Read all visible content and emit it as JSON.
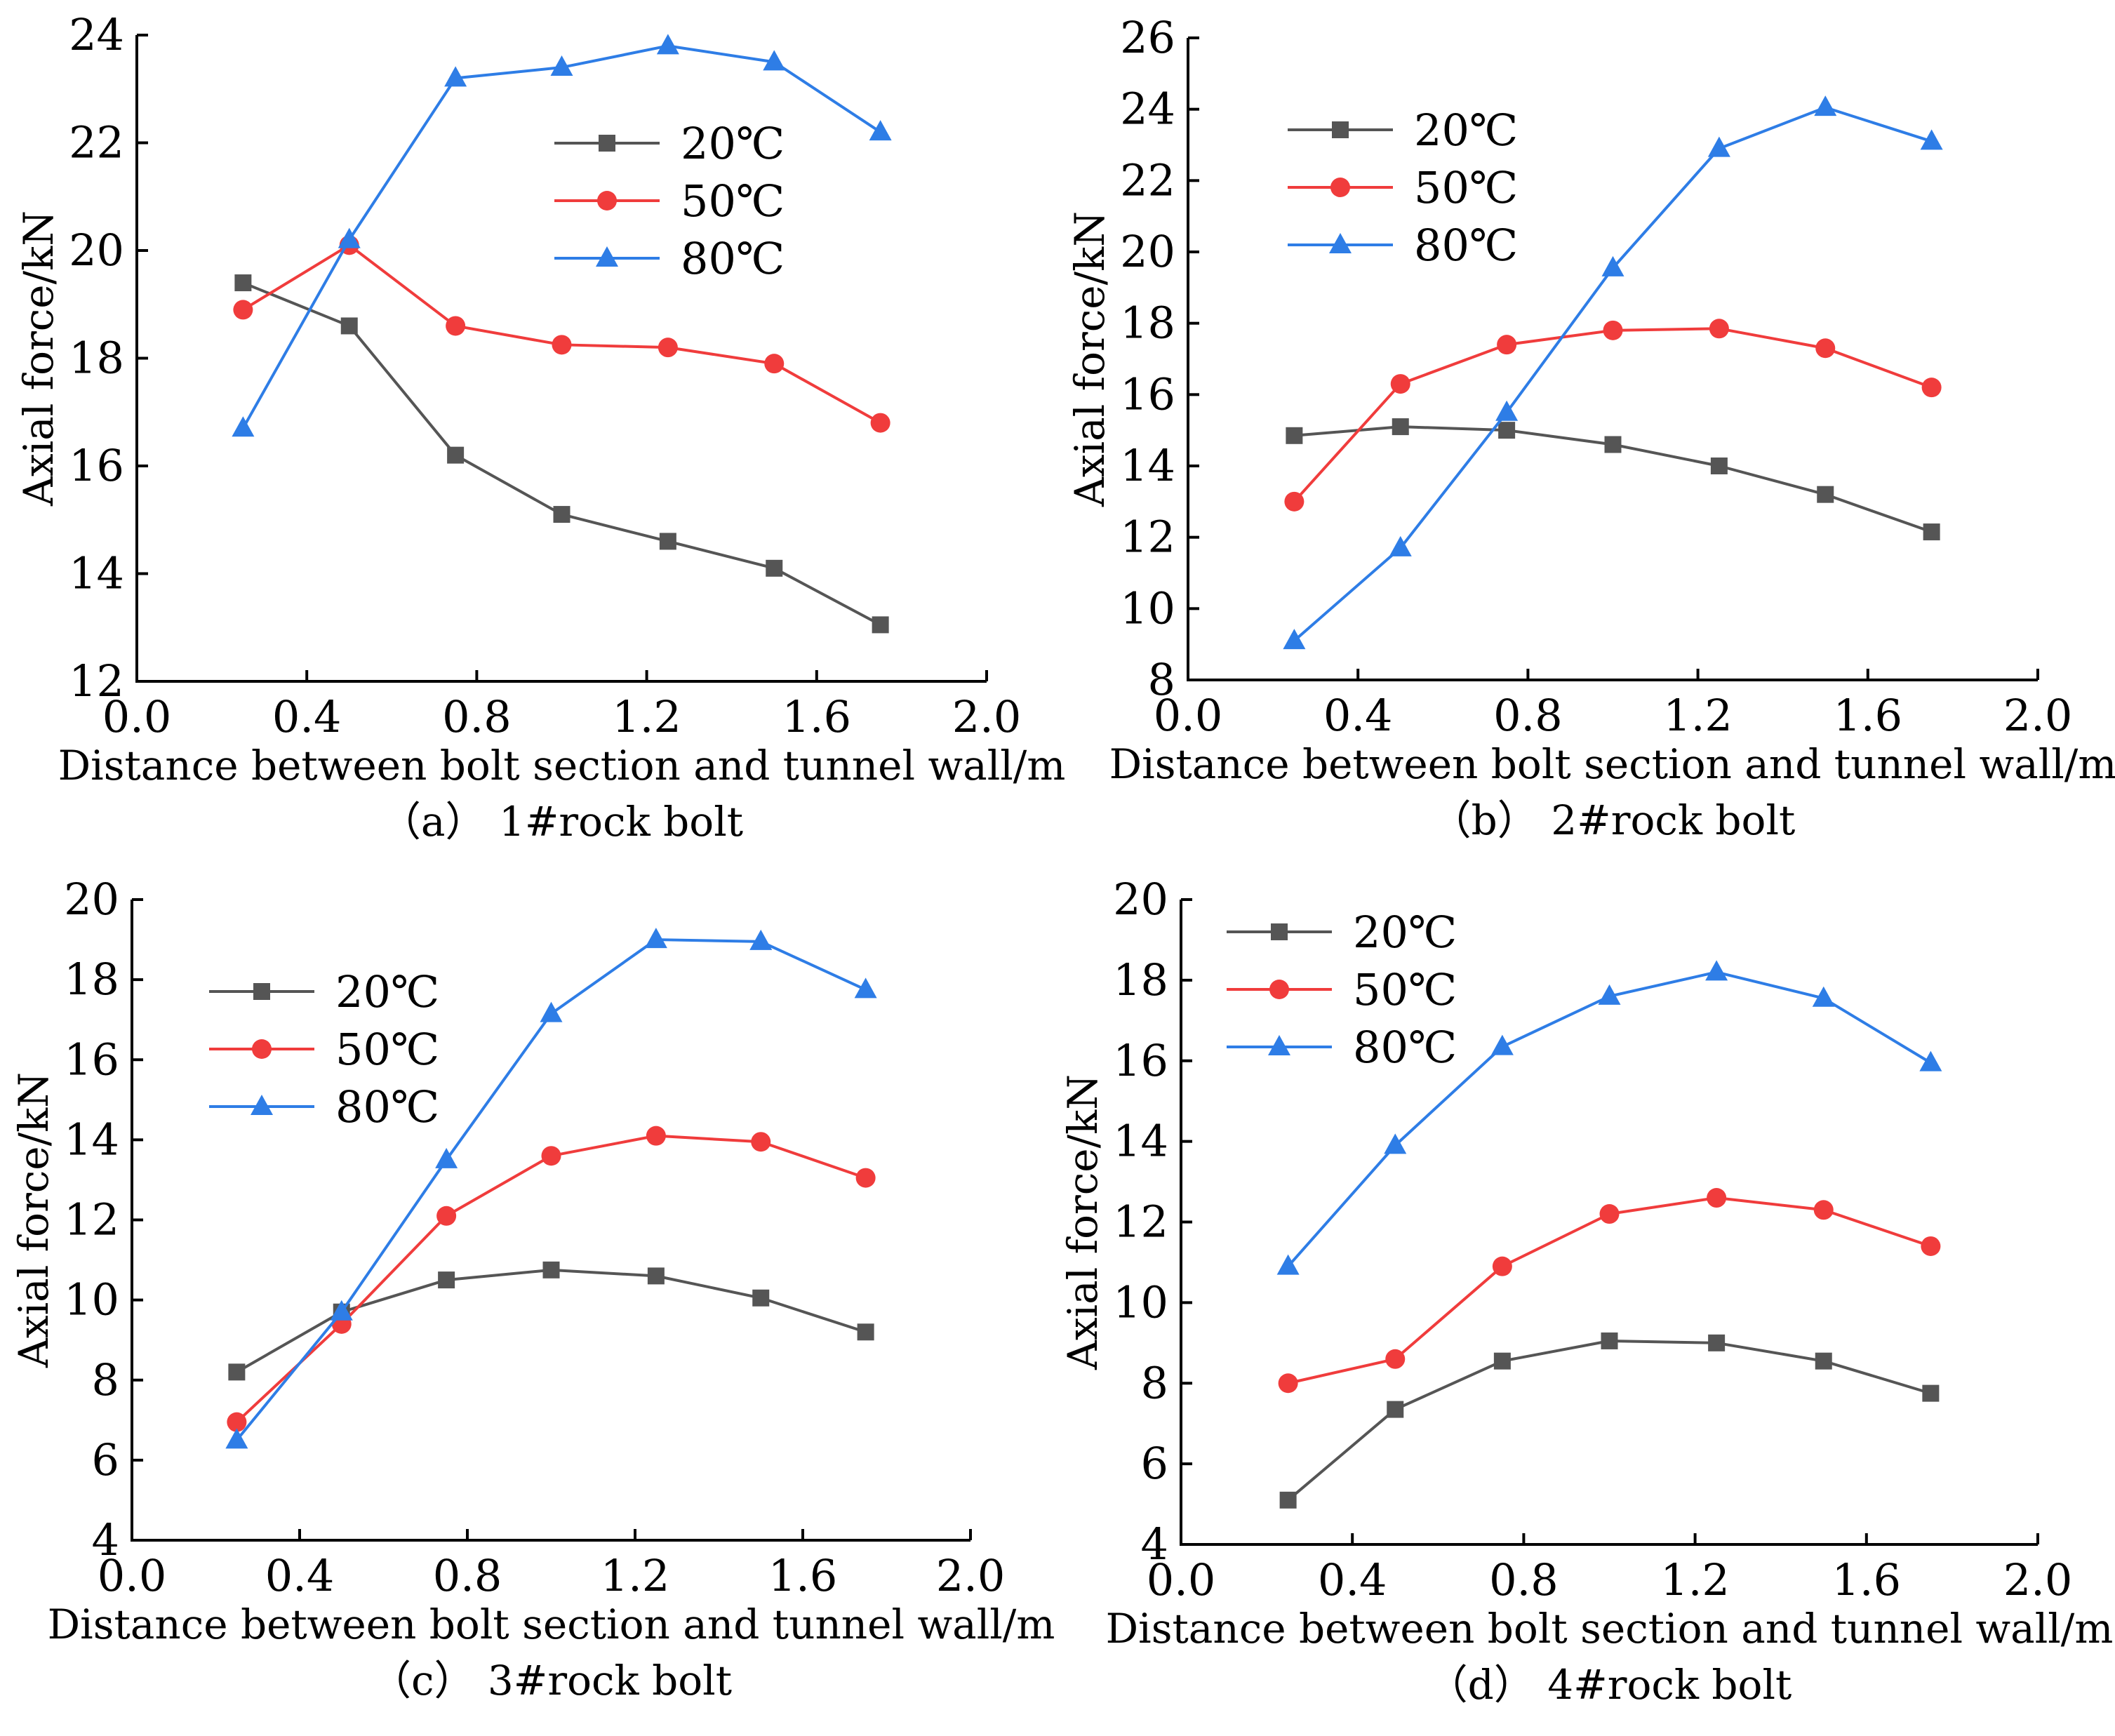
{
  "chart_data": [
    {
      "type": "line",
      "panel": "a",
      "caption": "（a） 1#rock  bolt",
      "xlabel": "Distance between bolt section and tunnel wall/m",
      "ylabel": "Axial  force/kN",
      "xlim": [
        0.0,
        2.0
      ],
      "ylim": [
        12,
        24
      ],
      "xticks": [
        "0.0",
        "0.4",
        "0.8",
        "1.2",
        "1.6",
        "2.0"
      ],
      "yticks": [
        "12",
        "14",
        "16",
        "18",
        "20",
        "22",
        "24"
      ],
      "legend_position": "upper-middle",
      "x": [
        0.25,
        0.5,
        0.75,
        1.0,
        1.25,
        1.5,
        1.75
      ],
      "series": [
        {
          "name": "20℃",
          "marker": "square",
          "color": "#555555",
          "values": [
            19.4,
            18.6,
            16.2,
            15.1,
            14.6,
            14.1,
            13.05
          ]
        },
        {
          "name": "50℃",
          "marker": "circle",
          "color": "#f03c3c",
          "values": [
            18.9,
            20.1,
            18.6,
            18.25,
            18.2,
            17.9,
            16.8
          ]
        },
        {
          "name": "80℃",
          "marker": "triangle",
          "color": "#2e7de6",
          "values": [
            16.7,
            20.2,
            23.2,
            23.4,
            23.8,
            23.5,
            22.2
          ]
        }
      ]
    },
    {
      "type": "line",
      "panel": "b",
      "caption": "（b） 2#rock  bolt",
      "xlabel": "Distance between bolt section and tunnel wall/m",
      "ylabel": "Axial  force/kN",
      "xlim": [
        0.0,
        2.0
      ],
      "ylim": [
        8,
        26
      ],
      "xticks": [
        "0.0",
        "0.4",
        "0.8",
        "1.2",
        "1.6",
        "2.0"
      ],
      "yticks": [
        "8",
        "10",
        "12",
        "14",
        "16",
        "18",
        "20",
        "22",
        "24",
        "26"
      ],
      "legend_position": "top-left",
      "x": [
        0.25,
        0.5,
        0.75,
        1.0,
        1.25,
        1.5,
        1.75
      ],
      "series": [
        {
          "name": "20℃",
          "marker": "square",
          "color": "#555555",
          "values": [
            14.85,
            15.1,
            15.0,
            14.6,
            14.0,
            13.2,
            12.15
          ]
        },
        {
          "name": "50℃",
          "marker": "circle",
          "color": "#f03c3c",
          "values": [
            13.0,
            16.3,
            17.4,
            17.8,
            17.85,
            17.3,
            16.2
          ]
        },
        {
          "name": "80℃",
          "marker": "triangle",
          "color": "#2e7de6",
          "values": [
            9.1,
            11.7,
            15.5,
            19.55,
            22.9,
            24.05,
            23.1
          ]
        }
      ]
    },
    {
      "type": "line",
      "panel": "c",
      "caption": "（c） 3#rock  bolt",
      "xlabel": "Distance between bolt section and tunnel wall/m",
      "ylabel": "Axial  force/kN",
      "xlim": [
        0.0,
        2.0
      ],
      "ylim": [
        4,
        20
      ],
      "xticks": [
        "0.0",
        "0.4",
        "0.8",
        "1.2",
        "1.6",
        "2.0"
      ],
      "yticks": [
        "4",
        "6",
        "8",
        "10",
        "12",
        "14",
        "16",
        "18",
        "20"
      ],
      "legend_position": "top-left",
      "x": [
        0.25,
        0.5,
        0.75,
        1.0,
        1.25,
        1.5,
        1.75
      ],
      "series": [
        {
          "name": "20℃",
          "marker": "square",
          "color": "#555555",
          "values": [
            8.2,
            9.7,
            10.5,
            10.75,
            10.6,
            10.05,
            9.2
          ]
        },
        {
          "name": "50℃",
          "marker": "circle",
          "color": "#f03c3c",
          "values": [
            6.95,
            9.4,
            12.1,
            13.6,
            14.1,
            13.95,
            13.05
          ]
        },
        {
          "name": "80℃",
          "marker": "triangle",
          "color": "#2e7de6",
          "values": [
            6.5,
            9.7,
            13.5,
            17.15,
            19.0,
            18.95,
            17.75
          ]
        }
      ]
    },
    {
      "type": "line",
      "panel": "d",
      "caption": "（d） 4#rock  bolt",
      "xlabel": "Distance between bolt section and tunnel wall/m",
      "ylabel": "Axial  force/kN",
      "xlim": [
        0.0,
        2.0
      ],
      "ylim": [
        4,
        20
      ],
      "xticks": [
        "0.0",
        "0.4",
        "0.8",
        "1.2",
        "1.6",
        "2.0"
      ],
      "yticks": [
        "4",
        "6",
        "8",
        "10",
        "12",
        "14",
        "16",
        "18",
        "20"
      ],
      "legend_position": "top-left",
      "x": [
        0.25,
        0.5,
        0.75,
        1.0,
        1.25,
        1.5,
        1.75
      ],
      "series": [
        {
          "name": "20℃",
          "marker": "square",
          "color": "#555555",
          "values": [
            5.1,
            7.35,
            8.55,
            9.05,
            9.0,
            8.55,
            7.75
          ]
        },
        {
          "name": "50℃",
          "marker": "circle",
          "color": "#f03c3c",
          "values": [
            8.0,
            8.6,
            10.9,
            12.2,
            12.6,
            12.3,
            11.4
          ]
        },
        {
          "name": "80℃",
          "marker": "triangle",
          "color": "#2e7de6",
          "values": [
            10.9,
            13.9,
            16.35,
            17.6,
            18.2,
            17.55,
            15.95
          ]
        }
      ]
    }
  ]
}
